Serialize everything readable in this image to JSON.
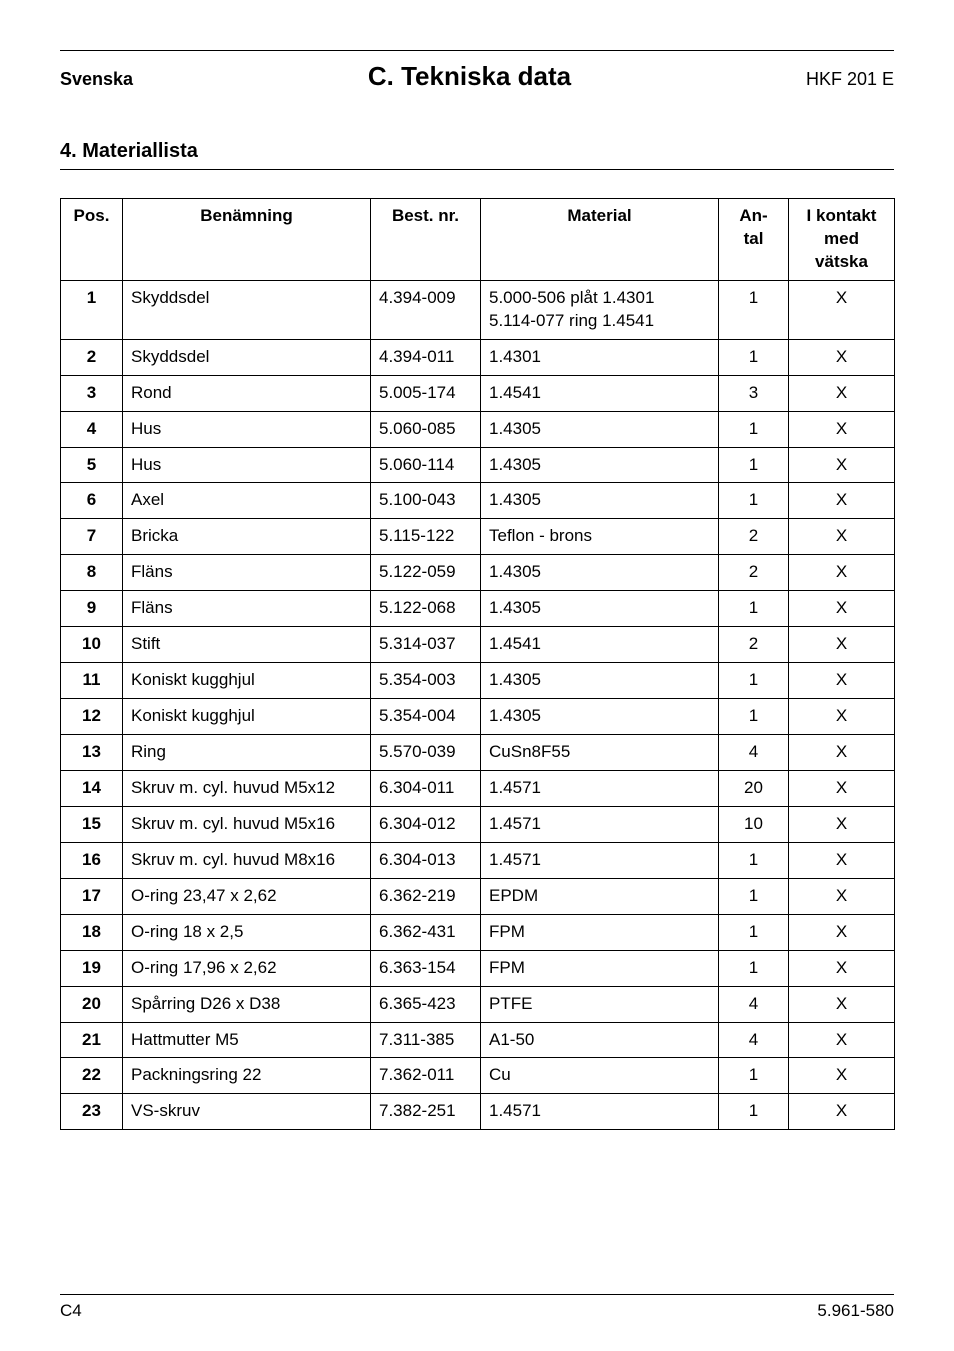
{
  "header": {
    "left": "Svenska",
    "center": "C. Tekniska data",
    "right": "HKF 201 E"
  },
  "section": {
    "number": "4.",
    "title": "Materiallista"
  },
  "table": {
    "columns": {
      "pos": "Pos.",
      "name": "Benämning",
      "best": "Best. nr.",
      "material": "Material",
      "antal_line1": "An-",
      "antal_line2": "tal",
      "kontakt_line1": "I kontakt",
      "kontakt_line2": "med",
      "kontakt_line3": "vätska"
    },
    "rows": [
      {
        "pos": "1",
        "name": "Skyddsdel",
        "best": "4.394-009",
        "material": "5.000-506 plåt 1.4301\n5.114-077 ring 1.4541",
        "antal": "1",
        "kontakt": "X"
      },
      {
        "pos": "2",
        "name": "Skyddsdel",
        "best": "4.394-011",
        "material": "1.4301",
        "antal": "1",
        "kontakt": "X"
      },
      {
        "pos": "3",
        "name": "Rond",
        "best": "5.005-174",
        "material": "1.4541",
        "antal": "3",
        "kontakt": "X"
      },
      {
        "pos": "4",
        "name": "Hus",
        "best": "5.060-085",
        "material": "1.4305",
        "antal": "1",
        "kontakt": "X"
      },
      {
        "pos": "5",
        "name": "Hus",
        "best": "5.060-114",
        "material": "1.4305",
        "antal": "1",
        "kontakt": "X"
      },
      {
        "pos": "6",
        "name": "Axel",
        "best": "5.100-043",
        "material": "1.4305",
        "antal": "1",
        "kontakt": "X"
      },
      {
        "pos": "7",
        "name": "Bricka",
        "best": "5.115-122",
        "material": "Teflon - brons",
        "antal": "2",
        "kontakt": "X"
      },
      {
        "pos": "8",
        "name": "Fläns",
        "best": "5.122-059",
        "material": "1.4305",
        "antal": "2",
        "kontakt": "X"
      },
      {
        "pos": "9",
        "name": "Fläns",
        "best": "5.122-068",
        "material": "1.4305",
        "antal": "1",
        "kontakt": "X"
      },
      {
        "pos": "10",
        "name": "Stift",
        "best": "5.314-037",
        "material": "1.4541",
        "antal": "2",
        "kontakt": "X"
      },
      {
        "pos": "11",
        "name": "Koniskt kugghjul",
        "best": "5.354-003",
        "material": "1.4305",
        "antal": "1",
        "kontakt": "X"
      },
      {
        "pos": "12",
        "name": "Koniskt kugghjul",
        "best": "5.354-004",
        "material": "1.4305",
        "antal": "1",
        "kontakt": "X"
      },
      {
        "pos": "13",
        "name": "Ring",
        "best": "5.570-039",
        "material": "CuSn8F55",
        "antal": "4",
        "kontakt": "X"
      },
      {
        "pos": "14",
        "name": "Skruv m. cyl. huvud M5x12",
        "best": "6.304-011",
        "material": "1.4571",
        "antal": "20",
        "kontakt": "X"
      },
      {
        "pos": "15",
        "name": "Skruv m. cyl. huvud M5x16",
        "best": "6.304-012",
        "material": "1.4571",
        "antal": "10",
        "kontakt": "X"
      },
      {
        "pos": "16",
        "name": "Skruv m. cyl. huvud M8x16",
        "best": "6.304-013",
        "material": "1.4571",
        "antal": "1",
        "kontakt": "X"
      },
      {
        "pos": "17",
        "name": "O-ring 23,47 x 2,62",
        "best": "6.362-219",
        "material": "EPDM",
        "antal": "1",
        "kontakt": "X"
      },
      {
        "pos": "18",
        "name": "O-ring 18 x 2,5",
        "best": "6.362-431",
        "material": "FPM",
        "antal": "1",
        "kontakt": "X"
      },
      {
        "pos": "19",
        "name": "O-ring 17,96 x 2,62",
        "best": "6.363-154",
        "material": "FPM",
        "antal": "1",
        "kontakt": "X"
      },
      {
        "pos": "20",
        "name": "Spårring D26 x D38",
        "best": "6.365-423",
        "material": "PTFE",
        "antal": "4",
        "kontakt": "X"
      },
      {
        "pos": "21",
        "name": "Hattmutter M5",
        "best": "7.311-385",
        "material": "A1-50",
        "antal": "4",
        "kontakt": "X"
      },
      {
        "pos": "22",
        "name": "Packningsring 22",
        "best": "7.362-011",
        "material": "Cu",
        "antal": "1",
        "kontakt": "X"
      },
      {
        "pos": "23",
        "name": "VS-skruv",
        "best": "7.382-251",
        "material": "1.4571",
        "antal": "1",
        "kontakt": "X"
      }
    ]
  },
  "footer": {
    "left": "C4",
    "right": "5.961-580"
  }
}
